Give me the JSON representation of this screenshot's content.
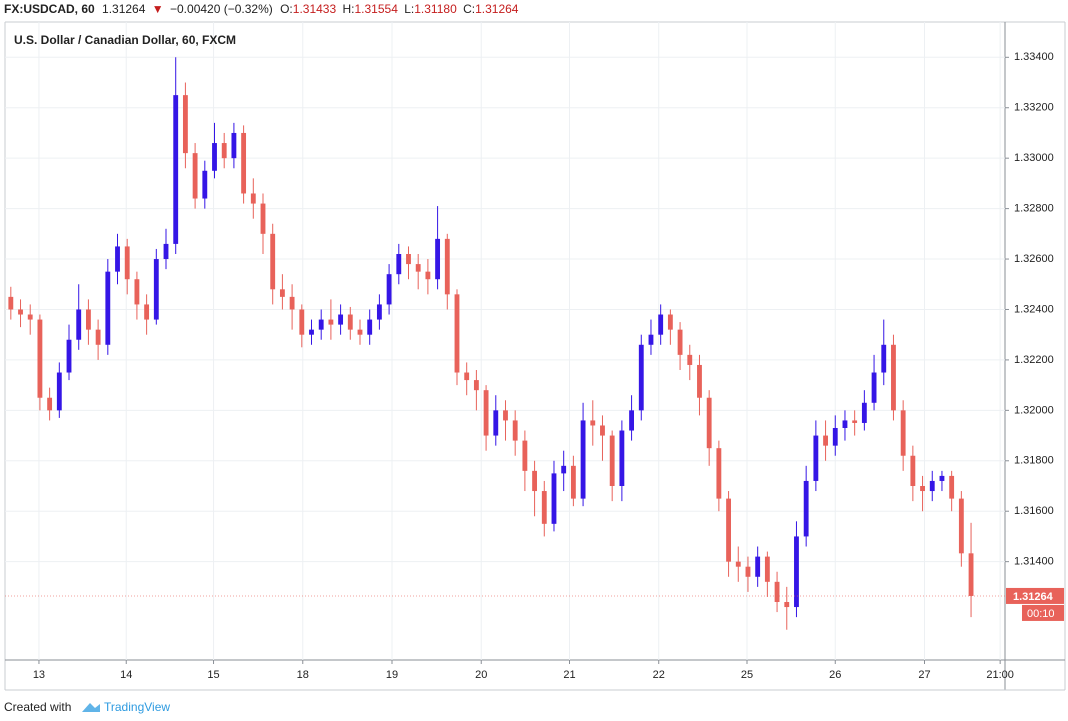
{
  "header": {
    "symbol": "FX:USDCAD, 60",
    "last": "1.31264",
    "arrow": "▼",
    "change": "−0.00420 (−0.32%)",
    "o_label": "O:",
    "o": "1.31433",
    "h_label": "H:",
    "h": "1.31554",
    "l_label": "L:",
    "l": "1.31180",
    "c_label": "C:",
    "c": "1.31264"
  },
  "footer": {
    "created": "Created with",
    "brand": "TradingView"
  },
  "chart_data": {
    "type": "candlestick",
    "title": "U.S. Dollar / Canadian Dollar, 60, FXCM",
    "up_color": "#3516e6",
    "down_color": "#e8625a",
    "grid": true,
    "xlim": [
      -0.6,
      102.5
    ],
    "xticks": [
      {
        "value": 2.9,
        "label": "13"
      },
      {
        "value": 11.9,
        "label": "14"
      },
      {
        "value": 20.9,
        "label": "15"
      },
      {
        "value": 30.1,
        "label": "18"
      },
      {
        "value": 39.3,
        "label": "19"
      },
      {
        "value": 48.5,
        "label": "20"
      },
      {
        "value": 57.6,
        "label": "21"
      },
      {
        "value": 66.8,
        "label": "22"
      },
      {
        "value": 75.9,
        "label": "25"
      },
      {
        "value": 85,
        "label": "26"
      },
      {
        "value": 94.2,
        "label": "27"
      },
      {
        "value": 102,
        "label": "21:00"
      }
    ],
    "ylim": [
      1.3101,
      1.3354
    ],
    "yticks": [
      {
        "value": 1.314,
        "label": "1.31400"
      },
      {
        "value": 1.316,
        "label": "1.31600"
      },
      {
        "value": 1.318,
        "label": "1.31800"
      },
      {
        "value": 1.32,
        "label": "1.32000"
      },
      {
        "value": 1.322,
        "label": "1.32200"
      },
      {
        "value": 1.324,
        "label": "1.32400"
      },
      {
        "value": 1.326,
        "label": "1.32600"
      },
      {
        "value": 1.328,
        "label": "1.32800"
      },
      {
        "value": 1.33,
        "label": "1.33000"
      },
      {
        "value": 1.332,
        "label": "1.33200"
      },
      {
        "value": 1.334,
        "label": "1.33400"
      }
    ],
    "last_price": {
      "value": 1.31264,
      "label": "1.31264"
    },
    "countdown": "00:10",
    "open": [
      1.3245,
      1.324,
      1.3238,
      1.3236,
      1.3205,
      1.32,
      1.3215,
      1.3228,
      1.324,
      1.3232,
      1.3226,
      1.3255,
      1.3265,
      1.3252,
      1.3242,
      1.3236,
      1.326,
      1.3266,
      1.3325,
      1.3302,
      1.3284,
      1.3295,
      1.3306,
      1.33,
      1.331,
      1.3286,
      1.3282,
      1.327,
      1.3248,
      1.3245,
      1.324,
      1.323,
      1.3232,
      1.3236,
      1.3234,
      1.3238,
      1.3232,
      1.323,
      1.3236,
      1.3242,
      1.3254,
      1.3262,
      1.3258,
      1.3255,
      1.3252,
      1.3268,
      1.3246,
      1.3215,
      1.3212,
      1.3208,
      1.319,
      1.32,
      1.3196,
      1.3188,
      1.3176,
      1.3168,
      1.3155,
      1.3175,
      1.3178,
      1.3165,
      1.3196,
      1.3194,
      1.319,
      1.317,
      1.3192,
      1.32,
      1.3226,
      1.323,
      1.3238,
      1.3232,
      1.3222,
      1.3218,
      1.3205,
      1.3185,
      1.3165,
      1.314,
      1.3138,
      1.3134,
      1.3142,
      1.3132,
      1.3124,
      1.3122,
      1.315,
      1.3172,
      1.319,
      1.3186,
      1.3193,
      1.3196,
      1.3195,
      1.3203,
      1.3215,
      1.3226,
      1.32,
      1.3182,
      1.317,
      1.3168,
      1.3172,
      1.3174,
      1.3165,
      1.31433
    ],
    "high": [
      1.3249,
      1.3244,
      1.3242,
      1.3238,
      1.3209,
      1.3219,
      1.3234,
      1.325,
      1.3244,
      1.3236,
      1.326,
      1.327,
      1.3268,
      1.3255,
      1.3246,
      1.3264,
      1.3272,
      1.334,
      1.333,
      1.3306,
      1.3299,
      1.3314,
      1.331,
      1.3314,
      1.3313,
      1.3292,
      1.3286,
      1.3274,
      1.3254,
      1.325,
      1.3242,
      1.3236,
      1.324,
      1.3244,
      1.3242,
      1.3241,
      1.3236,
      1.324,
      1.3246,
      1.3258,
      1.3266,
      1.3265,
      1.3262,
      1.326,
      1.3281,
      1.327,
      1.3248,
      1.3219,
      1.3216,
      1.321,
      1.3206,
      1.3204,
      1.32,
      1.3192,
      1.318,
      1.3172,
      1.318,
      1.3184,
      1.3182,
      1.3203,
      1.3204,
      1.3198,
      1.3192,
      1.3196,
      1.3206,
      1.323,
      1.3236,
      1.3242,
      1.324,
      1.3235,
      1.3226,
      1.3222,
      1.3208,
      1.3188,
      1.3168,
      1.3146,
      1.3142,
      1.3146,
      1.3144,
      1.3136,
      1.313,
      1.3156,
      1.3178,
      1.3196,
      1.3196,
      1.3198,
      1.32,
      1.32,
      1.3208,
      1.3222,
      1.3236,
      1.323,
      1.3204,
      1.3186,
      1.3174,
      1.3176,
      1.3176,
      1.3176,
      1.3168,
      1.31554
    ],
    "low": [
      1.3236,
      1.3233,
      1.323,
      1.32,
      1.3196,
      1.3197,
      1.3212,
      1.3224,
      1.3226,
      1.322,
      1.3222,
      1.325,
      1.3246,
      1.3236,
      1.323,
      1.3234,
      1.3256,
      1.3262,
      1.3296,
      1.328,
      1.328,
      1.3292,
      1.3296,
      1.3296,
      1.3282,
      1.3276,
      1.3262,
      1.3242,
      1.324,
      1.3232,
      1.3225,
      1.3226,
      1.3228,
      1.3228,
      1.323,
      1.3228,
      1.3226,
      1.3226,
      1.3232,
      1.3238,
      1.325,
      1.3252,
      1.3248,
      1.3246,
      1.3248,
      1.324,
      1.321,
      1.3206,
      1.32,
      1.3184,
      1.3186,
      1.3188,
      1.3182,
      1.3168,
      1.3158,
      1.315,
      1.3152,
      1.3168,
      1.3162,
      1.3162,
      1.3186,
      1.318,
      1.3164,
      1.3164,
      1.3188,
      1.3196,
      1.3222,
      1.3226,
      1.3226,
      1.3216,
      1.3212,
      1.3198,
      1.3178,
      1.316,
      1.3134,
      1.3132,
      1.3128,
      1.313,
      1.3126,
      1.312,
      1.3113,
      1.3118,
      1.3146,
      1.3168,
      1.318,
      1.3182,
      1.3188,
      1.319,
      1.3192,
      1.32,
      1.321,
      1.3196,
      1.3176,
      1.3164,
      1.316,
      1.3164,
      1.3168,
      1.316,
      1.3138,
      1.3118
    ],
    "close": [
      1.324,
      1.3238,
      1.3236,
      1.3205,
      1.32,
      1.3215,
      1.3228,
      1.324,
      1.3232,
      1.3226,
      1.3255,
      1.3265,
      1.3252,
      1.3242,
      1.3236,
      1.326,
      1.3266,
      1.3325,
      1.3302,
      1.3284,
      1.3295,
      1.3306,
      1.33,
      1.331,
      1.3286,
      1.3282,
      1.327,
      1.3248,
      1.3245,
      1.324,
      1.323,
      1.3232,
      1.3236,
      1.3234,
      1.3238,
      1.3232,
      1.323,
      1.3236,
      1.3242,
      1.3254,
      1.3262,
      1.3258,
      1.3255,
      1.3252,
      1.3268,
      1.3246,
      1.3215,
      1.3212,
      1.3208,
      1.319,
      1.32,
      1.3196,
      1.3188,
      1.3176,
      1.3168,
      1.3155,
      1.3175,
      1.3178,
      1.3165,
      1.3196,
      1.3194,
      1.319,
      1.317,
      1.3192,
      1.32,
      1.3226,
      1.323,
      1.3238,
      1.3232,
      1.3222,
      1.3218,
      1.3205,
      1.3185,
      1.3165,
      1.314,
      1.3138,
      1.3134,
      1.3142,
      1.3132,
      1.3124,
      1.3122,
      1.315,
      1.3172,
      1.319,
      1.3186,
      1.3193,
      1.3196,
      1.3195,
      1.3203,
      1.3215,
      1.3226,
      1.32,
      1.3182,
      1.317,
      1.3168,
      1.3172,
      1.3174,
      1.3165,
      1.31433,
      1.31264
    ]
  }
}
